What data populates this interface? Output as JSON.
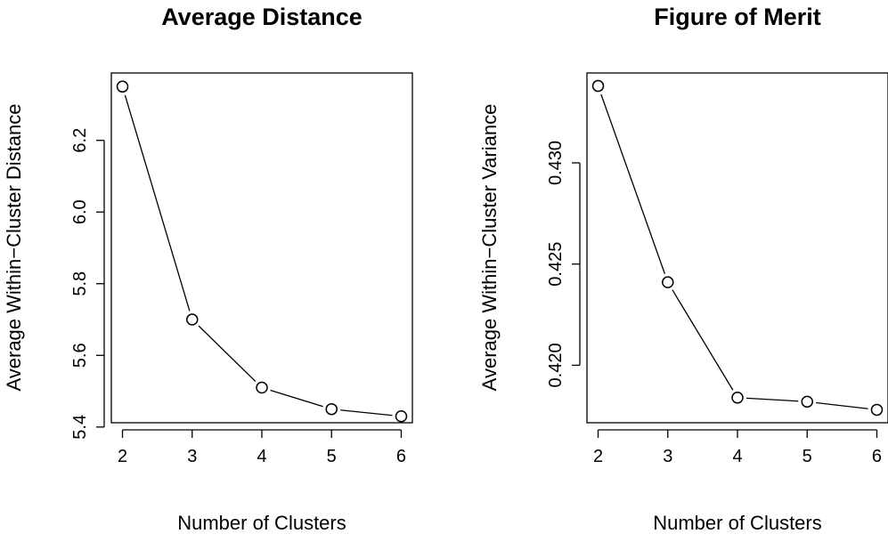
{
  "chart_data": [
    {
      "type": "line",
      "title": "Average Distance",
      "xlabel": "Number of Clusters",
      "ylabel": "Average Within−Cluster Distance",
      "x": [
        2,
        3,
        4,
        5,
        6
      ],
      "series": [
        {
          "values": [
            6.35,
            5.7,
            5.51,
            5.45,
            5.43
          ]
        }
      ],
      "xticks": [
        "2",
        "3",
        "4",
        "5",
        "6"
      ],
      "yticks": [
        "5.4",
        "5.6",
        "5.8",
        "6.0",
        "6.2"
      ],
      "ytick_values": [
        5.4,
        5.6,
        5.8,
        6.0,
        6.2
      ],
      "xlim": [
        1.84,
        6.16
      ],
      "ylim": [
        5.412,
        6.388
      ],
      "marker": "open-circle",
      "grid": false,
      "color": "#000000"
    },
    {
      "type": "line",
      "title": "Figure of Merit",
      "xlabel": "Number of Clusters",
      "ylabel": "Average Within−Cluster Variance",
      "x": [
        2,
        3,
        4,
        5,
        6
      ],
      "series": [
        {
          "values": [
            0.4338,
            0.4241,
            0.4184,
            0.4182,
            0.4178
          ]
        }
      ],
      "xticks": [
        "2",
        "3",
        "4",
        "5",
        "6"
      ],
      "yticks": [
        "0.420",
        "0.425",
        "0.430"
      ],
      "ytick_values": [
        0.42,
        0.425,
        0.43
      ],
      "xlim": [
        1.84,
        6.16
      ],
      "ylim": [
        0.41716,
        0.43444
      ],
      "marker": "open-circle",
      "grid": false,
      "color": "#000000"
    }
  ]
}
